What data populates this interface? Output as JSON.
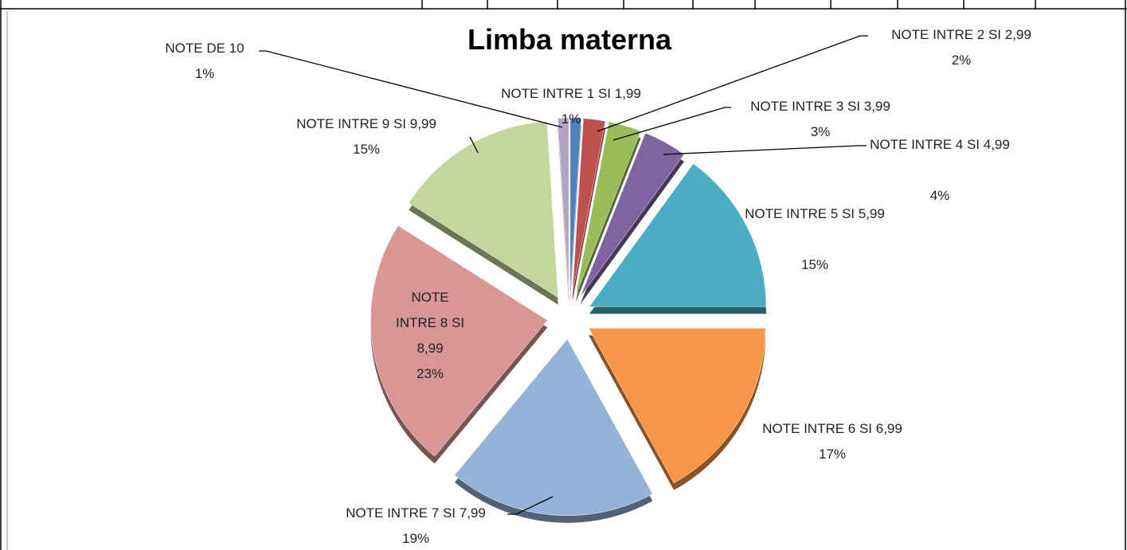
{
  "chart_data": {
    "type": "pie",
    "title": "Limba materna",
    "categories": [
      "NOTE INTRE 1 SI 1,99",
      "NOTE INTRE 2 SI 2,99",
      "NOTE INTRE 3 SI 3,99",
      "NOTE INTRE 4 SI 4,99",
      "NOTE INTRE 5 SI 5,99",
      "NOTE INTRE 6 SI 6,99",
      "NOTE INTRE 7 SI 7,99",
      "NOTE INTRE 8 SI 8,99",
      "NOTE INTRE 9 SI 9,99",
      "NOTE DE 10"
    ],
    "values": [
      1,
      2,
      3,
      4,
      15,
      17,
      19,
      23,
      15,
      1
    ],
    "value_labels": [
      "1%",
      "2%",
      "3%",
      "4%",
      "15%",
      "17%",
      "19%",
      "23%",
      "15%",
      "1%"
    ],
    "colors": [
      "#4f81bd",
      "#c0504d",
      "#9bbb59",
      "#8064a2",
      "#4bacc6",
      "#f79646",
      "#95b3d7",
      "#d99694",
      "#c3d69b",
      "#b2a2c7"
    ]
  }
}
